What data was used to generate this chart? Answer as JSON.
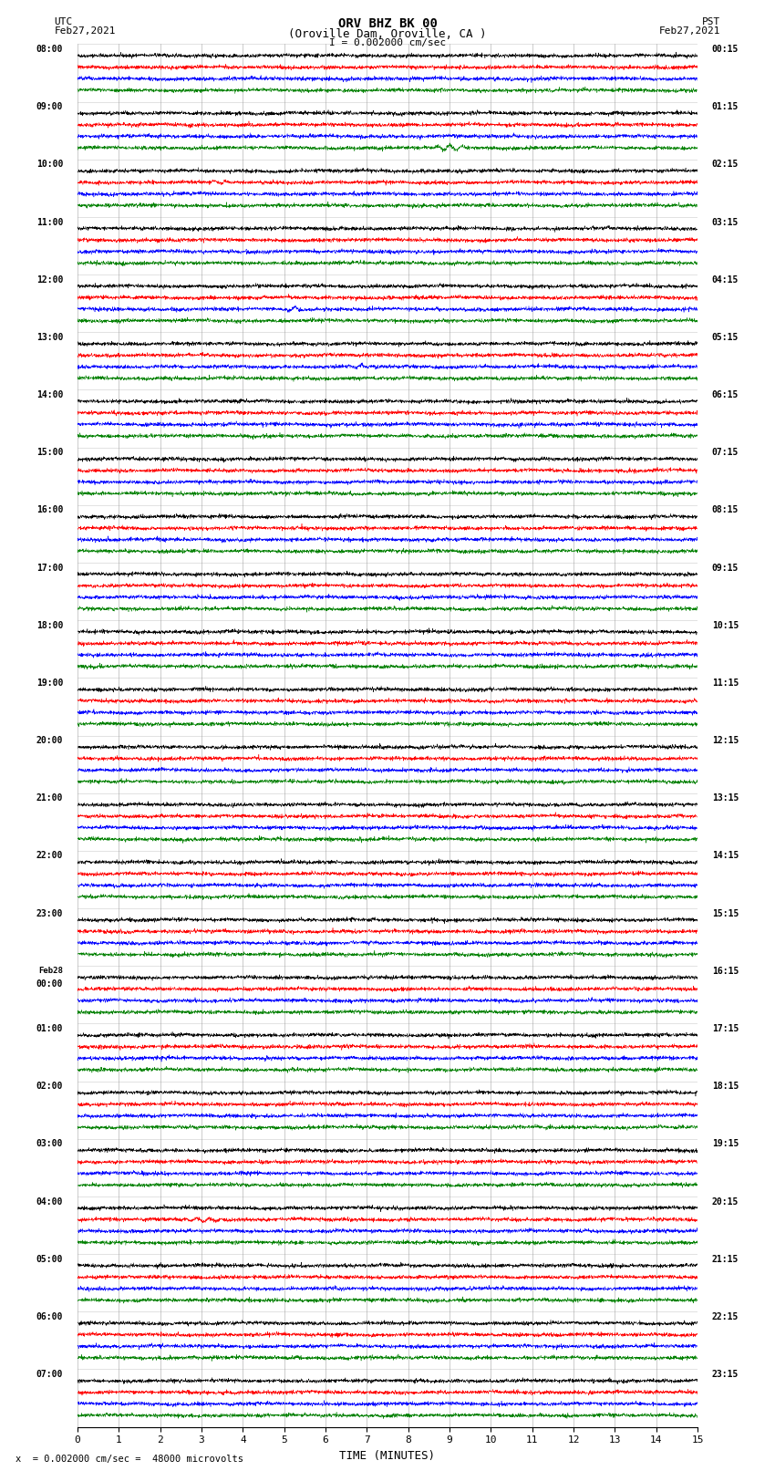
{
  "title_line1": "ORV BHZ BK 00",
  "title_line2": "(Oroville Dam, Oroville, CA )",
  "scale_label": "I = 0.002000 cm/sec",
  "bottom_label": "TIME (MINUTES)",
  "footer_label": "x  = 0.002000 cm/sec =  48000 microvolts",
  "xlabel_ticks": [
    0,
    1,
    2,
    3,
    4,
    5,
    6,
    7,
    8,
    9,
    10,
    11,
    12,
    13,
    14,
    15
  ],
  "row_colors": [
    "black",
    "red",
    "blue",
    "green"
  ],
  "background_color": "white",
  "grid_color": "#999999",
  "n_hour_groups": 24,
  "traces_per_group": 4,
  "utc_times": [
    "08:00",
    "09:00",
    "10:00",
    "11:00",
    "12:00",
    "13:00",
    "14:00",
    "15:00",
    "16:00",
    "17:00",
    "18:00",
    "19:00",
    "20:00",
    "21:00",
    "22:00",
    "23:00",
    "Feb28\n00:00",
    "01:00",
    "02:00",
    "03:00",
    "04:00",
    "05:00",
    "06:00",
    "07:00"
  ],
  "pst_times": [
    "00:15",
    "01:15",
    "02:15",
    "03:15",
    "04:15",
    "05:15",
    "06:15",
    "07:15",
    "08:15",
    "09:15",
    "10:15",
    "11:15",
    "12:15",
    "13:15",
    "14:15",
    "15:15",
    "16:15",
    "17:15",
    "18:15",
    "19:15",
    "20:15",
    "21:15",
    "22:15",
    "23:15"
  ]
}
